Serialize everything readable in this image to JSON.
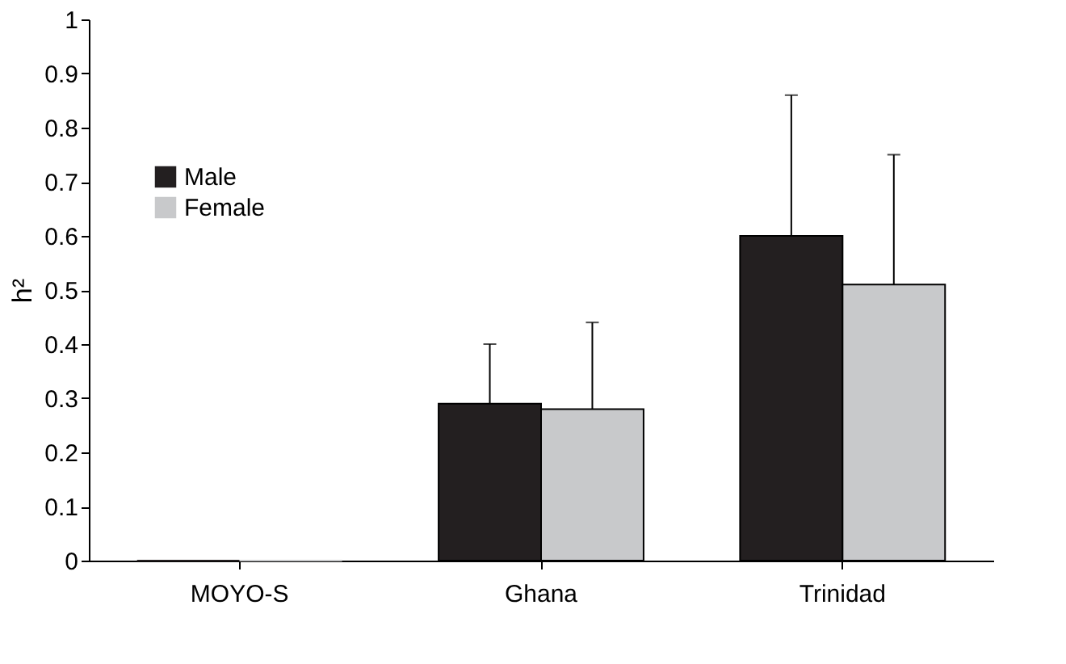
{
  "chart_data": {
    "type": "bar",
    "ylabel": "h²",
    "categories": [
      "MOYO-S",
      "Ghana",
      "Trinidad"
    ],
    "series": [
      {
        "name": "Male",
        "color": "#231f20",
        "values": [
          0,
          0.29,
          0.6
        ],
        "errors": [
          null,
          [
            0.29,
            0.4
          ],
          [
            0.6,
            0.86
          ]
        ]
      },
      {
        "name": "Female",
        "color": "#c8c9cb",
        "values": [
          0,
          0.28,
          0.51
        ],
        "errors": [
          null,
          [
            0.28,
            0.44
          ],
          [
            0.51,
            0.75
          ]
        ]
      }
    ],
    "ylim": [
      0,
      1
    ],
    "yticks": [
      0,
      0.1,
      0.2,
      0.3,
      0.4,
      0.5,
      0.6,
      0.7,
      0.8,
      0.9,
      1
    ],
    "grid": false,
    "legend": "top left"
  }
}
